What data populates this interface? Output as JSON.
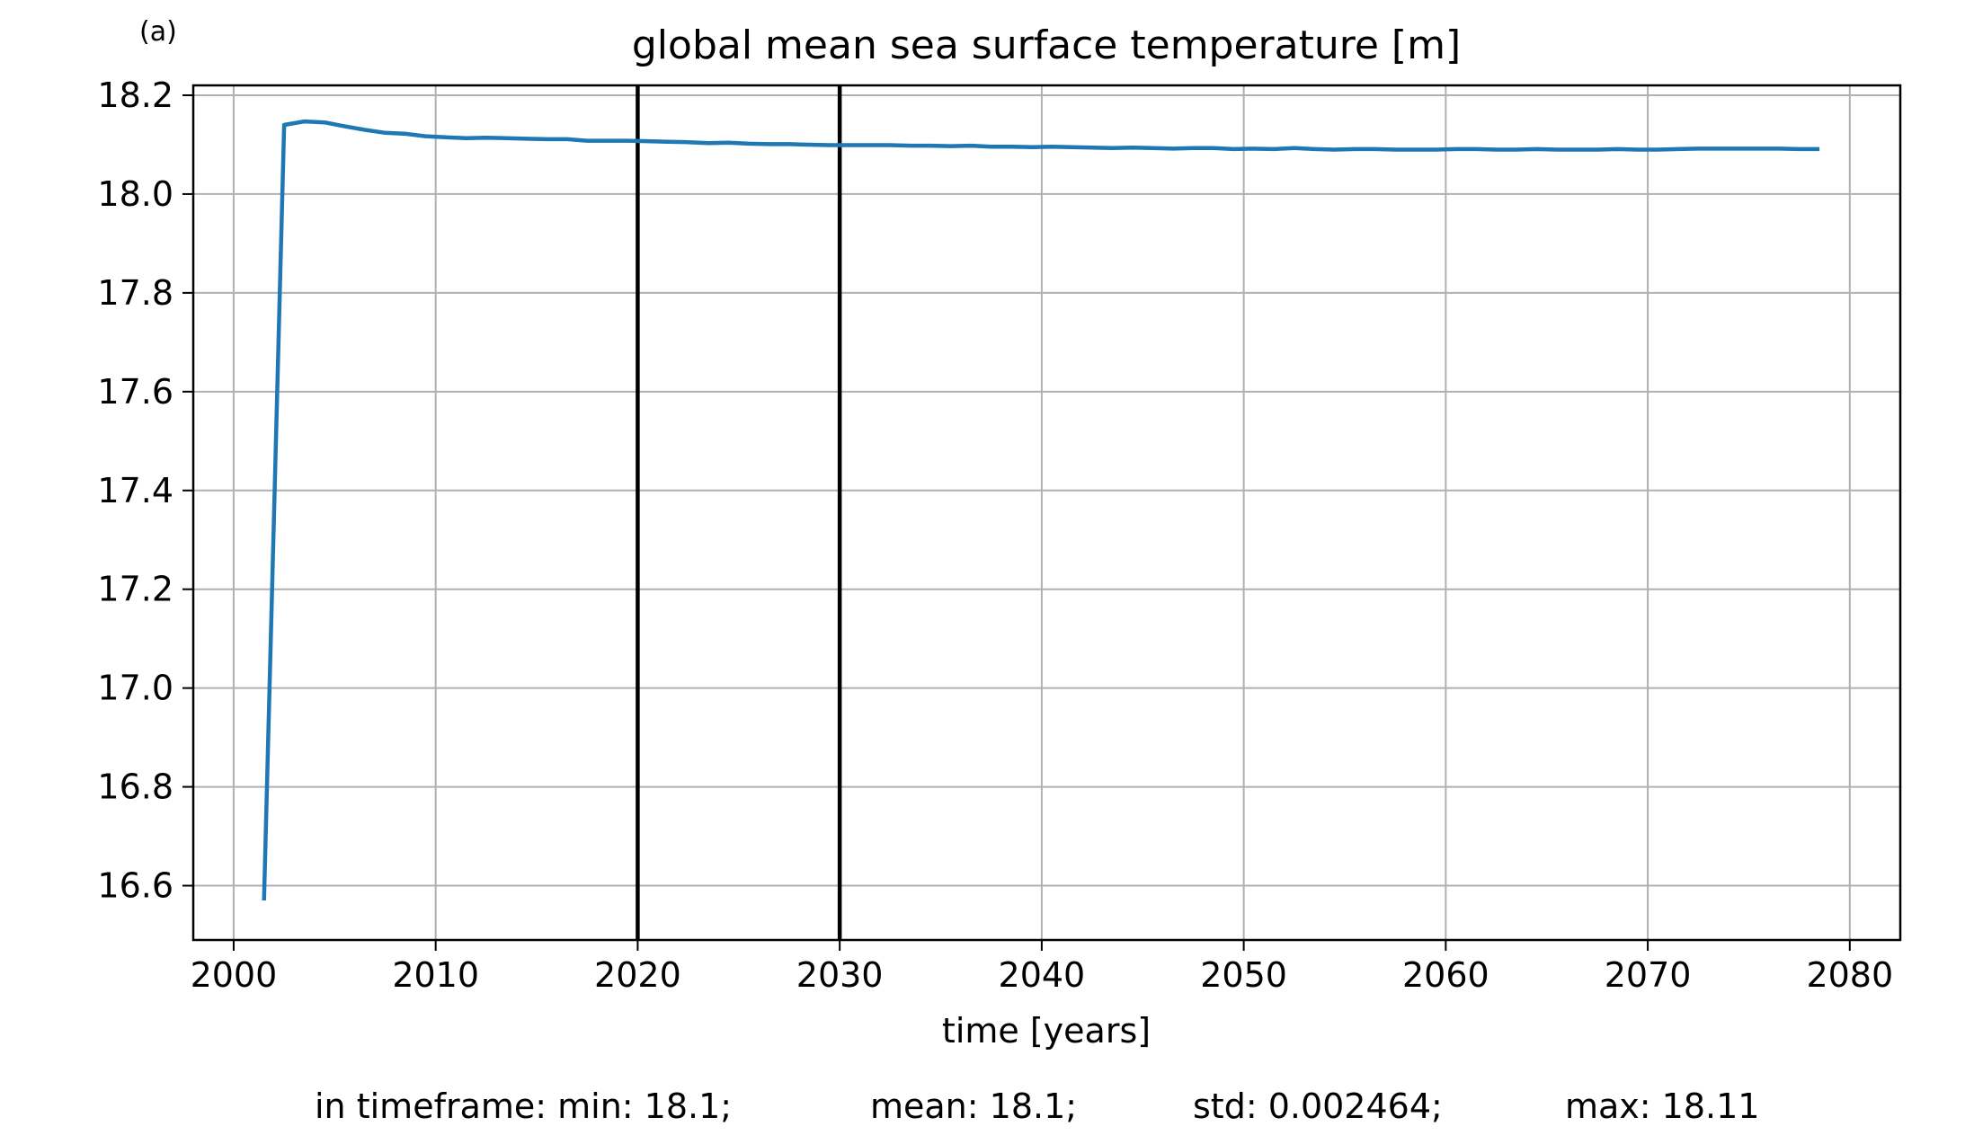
{
  "chart_data": {
    "type": "line",
    "panel_label": "(a)",
    "title": "global mean sea surface temperature [m]",
    "xlabel": "time [years]",
    "ylabel": "",
    "xlim": [
      1998,
      2082.5
    ],
    "ylim": [
      16.49,
      18.22
    ],
    "xticks": [
      2000,
      2010,
      2020,
      2030,
      2040,
      2050,
      2060,
      2070,
      2080
    ],
    "yticks": [
      16.6,
      16.8,
      17.0,
      17.2,
      17.4,
      17.6,
      17.8,
      18.0,
      18.2
    ],
    "xtick_labels": [
      "2000",
      "2010",
      "2020",
      "2030",
      "2040",
      "2050",
      "2060",
      "2070",
      "2080"
    ],
    "ytick_labels": [
      "16.6",
      "16.8",
      "17.0",
      "17.2",
      "17.4",
      "17.6",
      "17.8",
      "18.0",
      "18.2"
    ],
    "grid": true,
    "colors": {
      "series": "#1f77b4",
      "vline": "#000000",
      "grid": "#b0b0b0"
    },
    "vlines": [
      2020,
      2030
    ],
    "series": [
      {
        "x": [
          2001.5,
          2002.5,
          2003.5,
          2004.5,
          2005.5,
          2006.5,
          2007.5,
          2008.5,
          2009.5,
          2010.5,
          2011.5,
          2012.5,
          2013.5,
          2014.5,
          2015.5,
          2016.5,
          2017.5,
          2018.5,
          2019.5,
          2020.5,
          2021.5,
          2022.5,
          2023.5,
          2024.5,
          2025.5,
          2026.5,
          2027.5,
          2028.5,
          2029.5,
          2030.5,
          2031.5,
          2032.5,
          2033.5,
          2034.5,
          2035.5,
          2036.5,
          2037.5,
          2038.5,
          2039.5,
          2040.5,
          2041.5,
          2042.5,
          2043.5,
          2044.5,
          2045.5,
          2046.5,
          2047.5,
          2048.5,
          2049.5,
          2050.5,
          2051.5,
          2052.5,
          2053.5,
          2054.5,
          2055.5,
          2056.5,
          2057.5,
          2058.5,
          2059.5,
          2060.5,
          2061.5,
          2062.5,
          2063.5,
          2064.5,
          2065.5,
          2066.5,
          2067.5,
          2068.5,
          2069.5,
          2070.5,
          2071.5,
          2072.5,
          2073.5,
          2074.5,
          2075.5,
          2076.5,
          2077.5,
          2078.5
        ],
        "values": [
          16.57,
          18.14,
          18.147,
          18.145,
          18.137,
          18.13,
          18.124,
          18.122,
          18.117,
          18.115,
          18.113,
          18.114,
          18.113,
          18.112,
          18.111,
          18.111,
          18.108,
          18.108,
          18.108,
          18.107,
          18.106,
          18.105,
          18.103,
          18.104,
          18.102,
          18.101,
          18.101,
          18.1,
          18.099,
          18.099,
          18.099,
          18.099,
          18.098,
          18.098,
          18.097,
          18.098,
          18.096,
          18.096,
          18.095,
          18.096,
          18.095,
          18.094,
          18.093,
          18.094,
          18.093,
          18.092,
          18.093,
          18.093,
          18.091,
          18.092,
          18.091,
          18.093,
          18.091,
          18.09,
          18.091,
          18.091,
          18.09,
          18.09,
          18.09,
          18.091,
          18.091,
          18.09,
          18.09,
          18.091,
          18.09,
          18.09,
          18.09,
          18.091,
          18.09,
          18.09,
          18.091,
          18.092,
          18.092,
          18.092,
          18.092,
          18.092,
          18.091,
          18.091
        ]
      }
    ]
  },
  "stats": {
    "min_text": "in timeframe: min: 18.1;",
    "mean_text": "mean: 18.1;",
    "std_text": "std: 0.002464;",
    "max_text": "max: 18.11"
  }
}
